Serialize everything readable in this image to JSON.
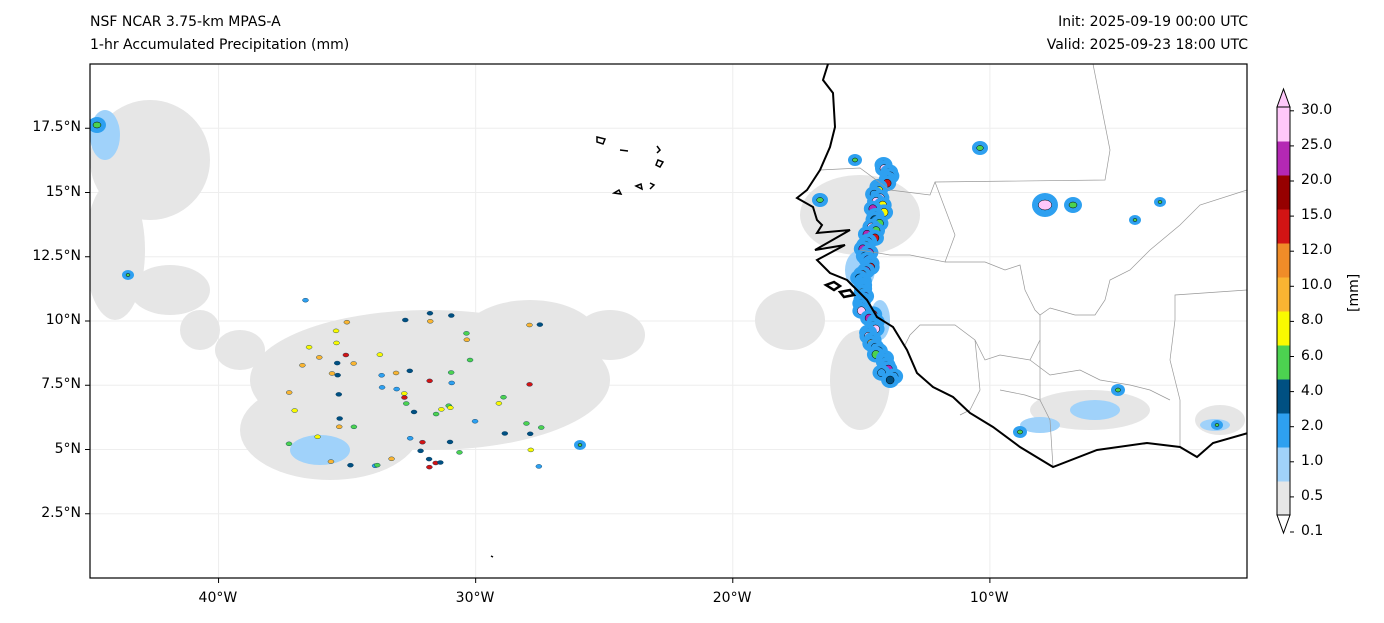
{
  "header": {
    "model": "NSF NCAR 3.75-km MPAS-A",
    "field": "1-hr Accumulated Precipitation (mm)",
    "init": "Init: 2025-09-19 00:00 UTC",
    "valid": "Valid: 2025-09-23 18:00 UTC"
  },
  "map": {
    "lon_range": [
      -45,
      0
    ],
    "lat_range": [
      0,
      20
    ],
    "lon_ticks": [
      {
        "value": -40,
        "label": "40°W"
      },
      {
        "value": -30,
        "label": "30°W"
      },
      {
        "value": -20,
        "label": "20°W"
      },
      {
        "value": -10,
        "label": "10°W"
      }
    ],
    "lat_ticks": [
      {
        "value": 17.5,
        "label": "17.5°N"
      },
      {
        "value": 15,
        "label": "15°N"
      },
      {
        "value": 12.5,
        "label": "12.5°N"
      },
      {
        "value": 10,
        "label": "10°N"
      },
      {
        "value": 7.5,
        "label": "7.5°N"
      },
      {
        "value": 5,
        "label": "5°N"
      },
      {
        "value": 2.5,
        "label": "2.5°N"
      }
    ]
  },
  "colorbar": {
    "label": "[mm]",
    "levels": [
      "0.1",
      "0.5",
      "1.0",
      "2.0",
      "4.0",
      "6.0",
      "8.0",
      "10.0",
      "12.0",
      "15.0",
      "20.0",
      "25.0",
      "30.0"
    ],
    "colors": [
      "#e6e6e6",
      "#a0d2fa",
      "#2ea0f0",
      "#005082",
      "#4cd250",
      "#fafa00",
      "#fab432",
      "#f08c28",
      "#d21414",
      "#960000",
      "#b428b4",
      "#ffc8fa"
    ]
  }
}
